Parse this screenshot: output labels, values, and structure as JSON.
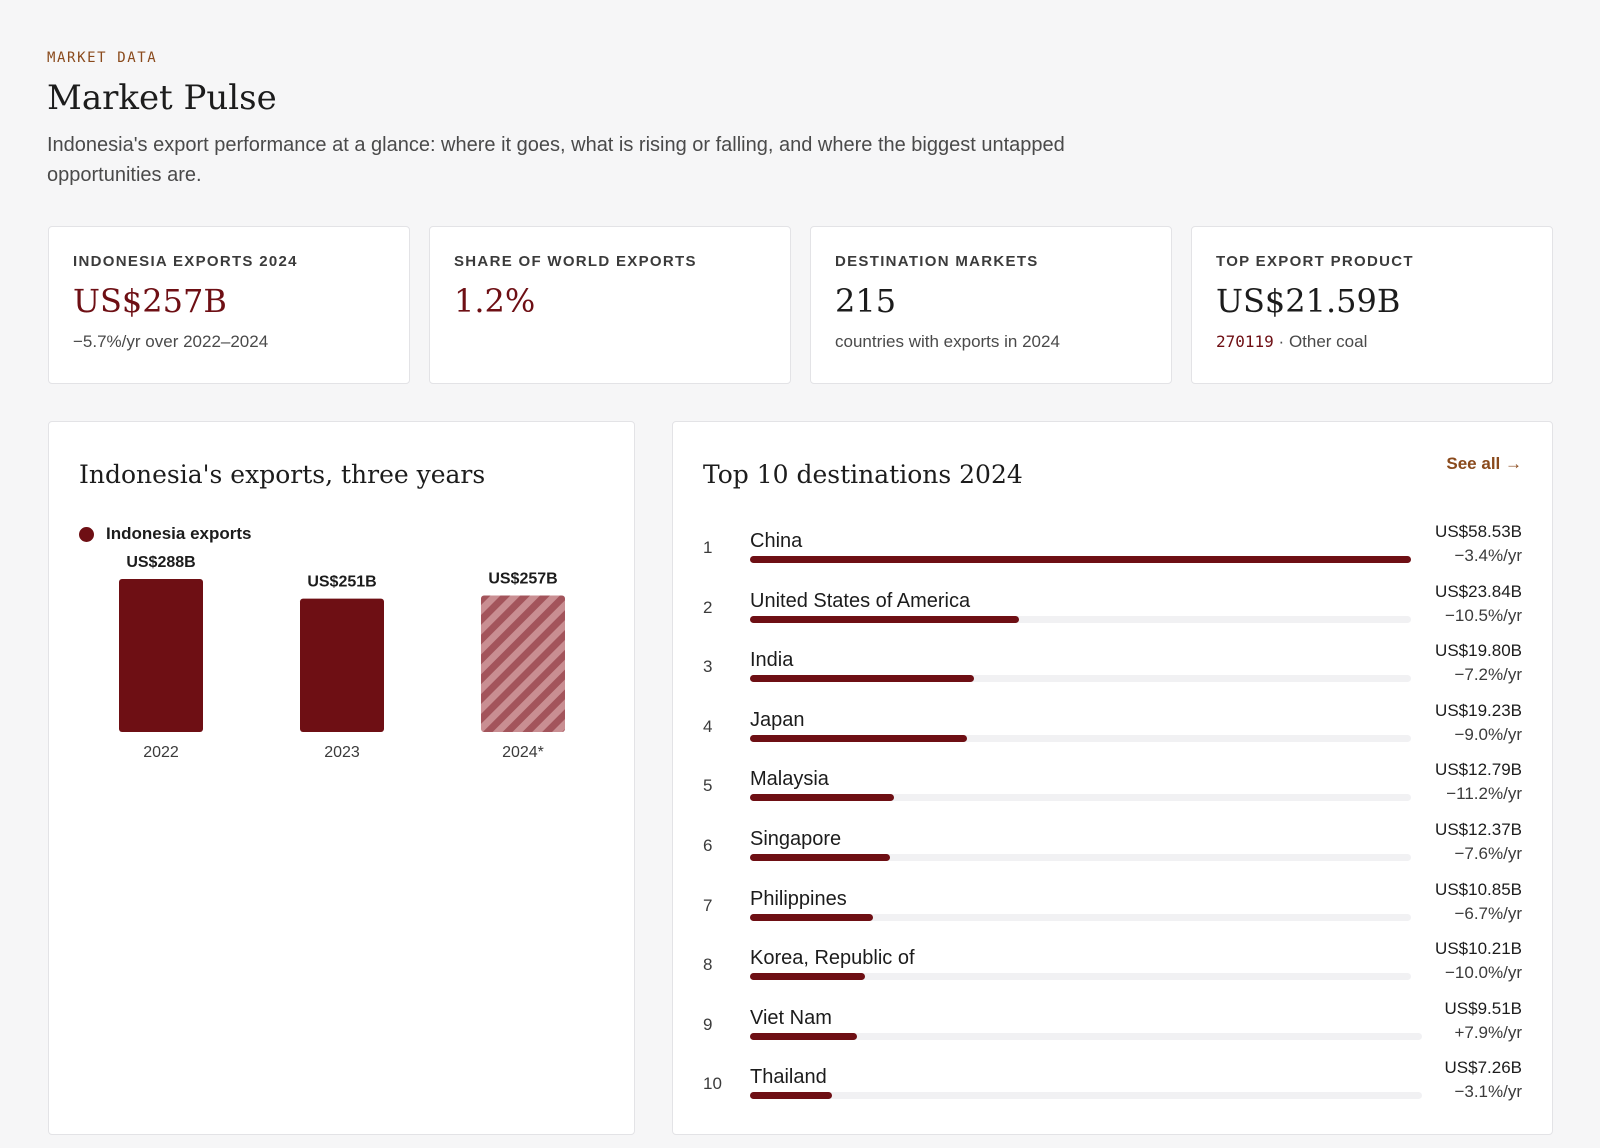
{
  "header": {
    "eyebrow": "MARKET DATA",
    "title": "Market Pulse",
    "subtitle": "Indonesia's export performance at a glance: where it goes, what is rising or falling, and where the biggest untapped opportunities are."
  },
  "kpis": [
    {
      "label": "INDONESIA EXPORTS 2024",
      "value": "US$257B",
      "sub": "−5.7%/yr over 2022–2024"
    },
    {
      "label": "SHARE OF WORLD EXPORTS",
      "value": "1.2%"
    },
    {
      "label": "DESTINATION MARKETS",
      "value": "215",
      "sub": "countries with exports in 2024"
    },
    {
      "label": "TOP EXPORT PRODUCT",
      "value": "US$21.59B",
      "code": "270119",
      "separator": "·",
      "sub": "Other coal"
    }
  ],
  "colors": {
    "accent": "#6e0f14",
    "accent_hatch": "#c98e92",
    "link": "#8a4a1c",
    "track": "#f1f1f3"
  },
  "chart_data": [
    {
      "type": "bar",
      "title": "Indonesia's exports, three years",
      "categories": [
        "2022",
        "2023",
        "2024*"
      ],
      "series": [
        {
          "name": "Indonesia exports",
          "values": [
            288,
            251,
            257
          ]
        }
      ],
      "value_labels": [
        "US$288B",
        "US$251B",
        "US$257B"
      ],
      "estimated": [
        false,
        false,
        true
      ],
      "legend": "top-left",
      "grid": false
    },
    {
      "type": "bar",
      "orientation": "horizontal",
      "title": "Top 10 destinations 2024",
      "link_label": "See all →",
      "rows": [
        {
          "rank": "1",
          "name": "China",
          "value": 58.53,
          "value_label": "US$58.53B",
          "growth": "−3.4%/yr"
        },
        {
          "rank": "2",
          "name": "United States of America",
          "value": 23.84,
          "value_label": "US$23.84B",
          "growth": "−10.5%/yr"
        },
        {
          "rank": "3",
          "name": "India",
          "value": 19.8,
          "value_label": "US$19.80B",
          "growth": "−7.2%/yr"
        },
        {
          "rank": "4",
          "name": "Japan",
          "value": 19.23,
          "value_label": "US$19.23B",
          "growth": "−9.0%/yr"
        },
        {
          "rank": "5",
          "name": "Malaysia",
          "value": 12.79,
          "value_label": "US$12.79B",
          "growth": "−11.2%/yr"
        },
        {
          "rank": "6",
          "name": "Singapore",
          "value": 12.37,
          "value_label": "US$12.37B",
          "growth": "−7.6%/yr"
        },
        {
          "rank": "7",
          "name": "Philippines",
          "value": 10.85,
          "value_label": "US$10.85B",
          "growth": "−6.7%/yr"
        },
        {
          "rank": "8",
          "name": "Korea, Republic of",
          "value": 10.21,
          "value_label": "US$10.21B",
          "growth": "−10.0%/yr"
        },
        {
          "rank": "9",
          "name": "Viet Nam",
          "value": 9.51,
          "value_label": "US$9.51B",
          "growth": "+7.9%/yr"
        },
        {
          "rank": "10",
          "name": "Thailand",
          "value": 7.26,
          "value_label": "US$7.26B",
          "growth": "−3.1%/yr"
        }
      ]
    }
  ]
}
